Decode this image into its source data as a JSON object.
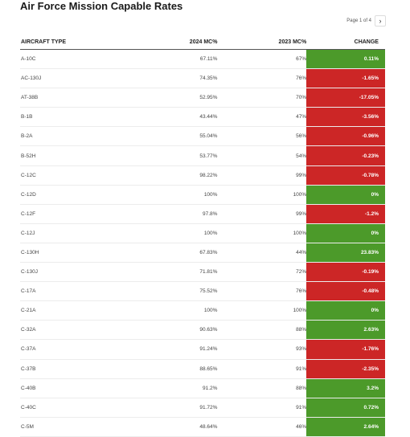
{
  "title": "Air Force Mission Capable Rates",
  "pager": {
    "text": "Page 1 of 4",
    "next_icon": "chevron-right-icon"
  },
  "colors": {
    "positive": "#4c9a2a",
    "negative": "#cc2626"
  },
  "chart_data": {
    "type": "table",
    "columns": [
      "AIRCRAFT TYPE",
      "2024 MC%",
      "2023 MC%",
      "CHANGE"
    ],
    "rows": [
      [
        "A-10C",
        "67.11%",
        "67%",
        "0.11%"
      ],
      [
        "AC-130J",
        "74.35%",
        "76%",
        "-1.65%"
      ],
      [
        "AT-38B",
        "52.95%",
        "70%",
        "-17.05%"
      ],
      [
        "B-1B",
        "43.44%",
        "47%",
        "-3.56%"
      ],
      [
        "B-2A",
        "55.04%",
        "56%",
        "-0.96%"
      ],
      [
        "B-52H",
        "53.77%",
        "54%",
        "-0.23%"
      ],
      [
        "C-12C",
        "98.22%",
        "99%",
        "-0.78%"
      ],
      [
        "C-12D",
        "100%",
        "100%",
        "0%"
      ],
      [
        "C-12F",
        "97.8%",
        "99%",
        "-1.2%"
      ],
      [
        "C-12J",
        "100%",
        "100%",
        "0%"
      ],
      [
        "C-130H",
        "67.83%",
        "44%",
        "23.83%"
      ],
      [
        "C-130J",
        "71.81%",
        "72%",
        "-0.19%"
      ],
      [
        "C-17A",
        "75.52%",
        "76%",
        "-0.48%"
      ],
      [
        "C-21A",
        "100%",
        "100%",
        "0%"
      ],
      [
        "C-32A",
        "90.63%",
        "88%",
        "2.63%"
      ],
      [
        "C-37A",
        "91.24%",
        "93%",
        "-1.76%"
      ],
      [
        "C-37B",
        "88.65%",
        "91%",
        "-2.35%"
      ],
      [
        "C-40B",
        "91.2%",
        "88%",
        "3.2%"
      ],
      [
        "C-40C",
        "91.72%",
        "91%",
        "0.72%"
      ],
      [
        "C-5M",
        "48.64%",
        "46%",
        "2.64%"
      ]
    ]
  }
}
